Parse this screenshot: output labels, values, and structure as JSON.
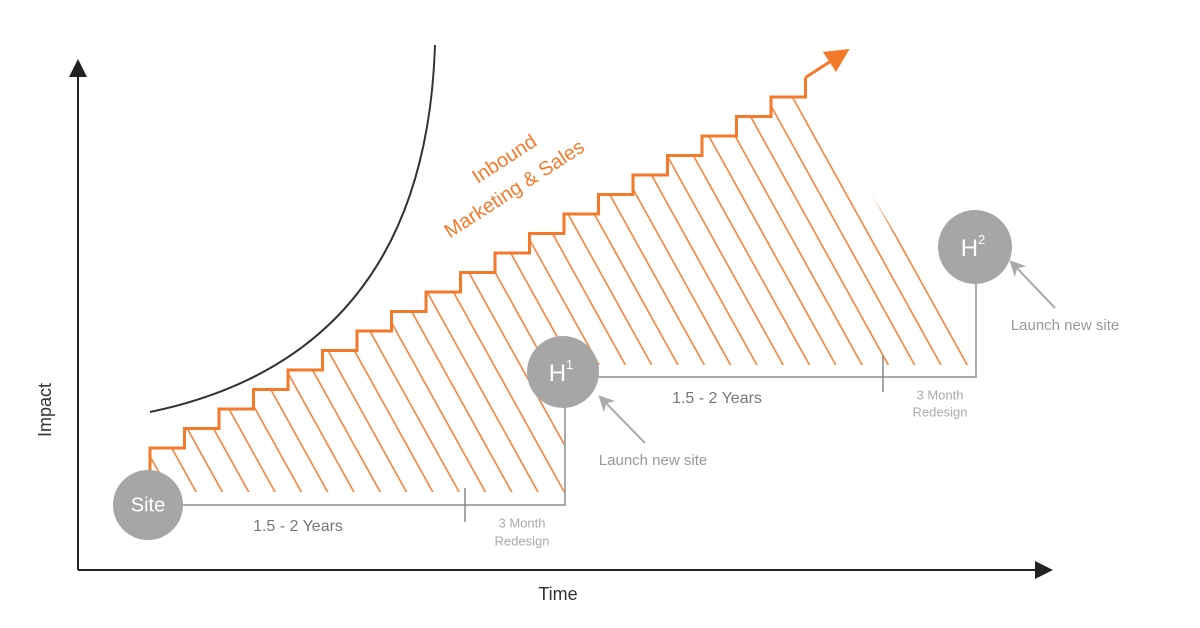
{
  "axes": {
    "y_label": "Impact",
    "x_label": "Time"
  },
  "curve_label": [
    "Inbound",
    "Marketing & Sales"
  ],
  "nodes": [
    {
      "label": "Site"
    },
    {
      "label": "H",
      "superscript": "1"
    },
    {
      "label": "H",
      "superscript": "2"
    }
  ],
  "phases": [
    {
      "duration": "1.5 - 2 Years",
      "redesign": [
        "3 Month",
        "Redesign"
      ],
      "launch": "Launch new site"
    },
    {
      "duration": "1.5 - 2 Years",
      "redesign": [
        "3 Month",
        "Redesign"
      ],
      "launch": "Launch new site"
    }
  ]
}
